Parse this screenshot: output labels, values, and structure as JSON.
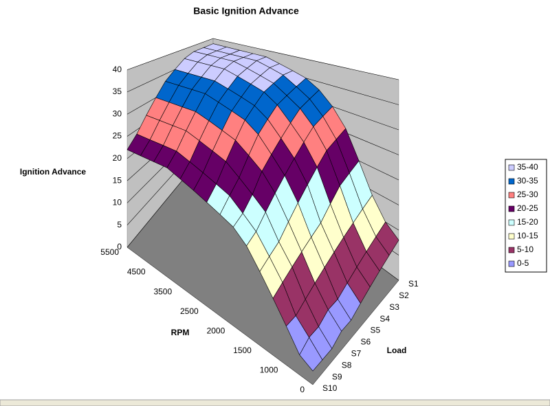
{
  "chart_data": {
    "type": "surface3d",
    "title": "Basic Ignition Advance",
    "z_label": "Ignition Advance",
    "x_label": "RPM",
    "y_label": "Load",
    "categories": [
      0,
      null,
      1000,
      null,
      1500,
      null,
      2000,
      null,
      2500,
      null,
      3500,
      null,
      4500,
      null,
      5500
    ],
    "series": [
      {
        "name": "S1",
        "values": [
          8,
          10,
          14,
          20,
          26,
          30,
          33,
          35,
          36,
          37,
          38,
          38,
          38,
          38,
          38
        ]
      },
      {
        "name": "S2",
        "values": [
          7,
          9,
          13,
          19,
          25,
          29,
          32,
          34,
          36,
          37,
          38,
          38,
          38,
          38,
          38
        ]
      },
      {
        "name": "S3",
        "values": [
          6,
          8,
          12,
          18,
          24,
          28,
          31,
          33,
          35,
          36,
          37,
          38,
          38,
          38,
          38
        ]
      },
      {
        "name": "S4",
        "values": [
          5,
          7,
          11,
          16,
          22,
          26,
          29,
          32,
          34,
          35,
          36,
          37,
          37,
          37,
          37
        ]
      },
      {
        "name": "S5",
        "values": [
          4,
          6,
          10,
          14,
          20,
          24,
          27,
          30,
          32,
          33,
          34,
          35,
          35,
          35,
          35
        ]
      },
      {
        "name": "S6",
        "values": [
          3,
          5,
          9,
          13,
          18,
          22,
          25,
          28,
          30,
          31,
          32,
          33,
          33,
          33,
          33
        ]
      },
      {
        "name": "S7",
        "values": [
          3,
          5,
          8,
          12,
          16,
          20,
          23,
          25,
          27,
          28,
          29,
          30,
          30,
          30,
          30
        ]
      },
      {
        "name": "S8",
        "values": [
          2,
          4,
          7,
          11,
          14,
          18,
          20,
          22,
          24,
          25,
          26,
          27,
          27,
          27,
          27
        ]
      },
      {
        "name": "S9",
        "values": [
          2,
          4,
          6,
          10,
          13,
          16,
          18,
          20,
          21,
          22,
          23,
          24,
          24,
          24,
          24
        ]
      },
      {
        "name": "S10",
        "values": [
          2,
          3,
          6,
          9,
          12,
          15,
          17,
          18,
          19,
          20,
          21,
          22,
          22,
          22,
          22
        ]
      }
    ],
    "zlim": [
      0,
      40
    ],
    "zticks": [
      0,
      5,
      10,
      15,
      20,
      25,
      30,
      35,
      40
    ],
    "legend_position": "right",
    "color_bands": [
      {
        "name": "35-40",
        "color": "#ccccff"
      },
      {
        "name": "30-35",
        "color": "#0066cc"
      },
      {
        "name": "25-30",
        "color": "#ff8080"
      },
      {
        "name": "20-25",
        "color": "#660066"
      },
      {
        "name": "15-20",
        "color": "#ccffff"
      },
      {
        "name": "10-15",
        "color": "#ffffcc"
      },
      {
        "name": "5-10",
        "color": "#993366"
      },
      {
        "name": "0-5",
        "color": "#9999ff"
      }
    ]
  }
}
